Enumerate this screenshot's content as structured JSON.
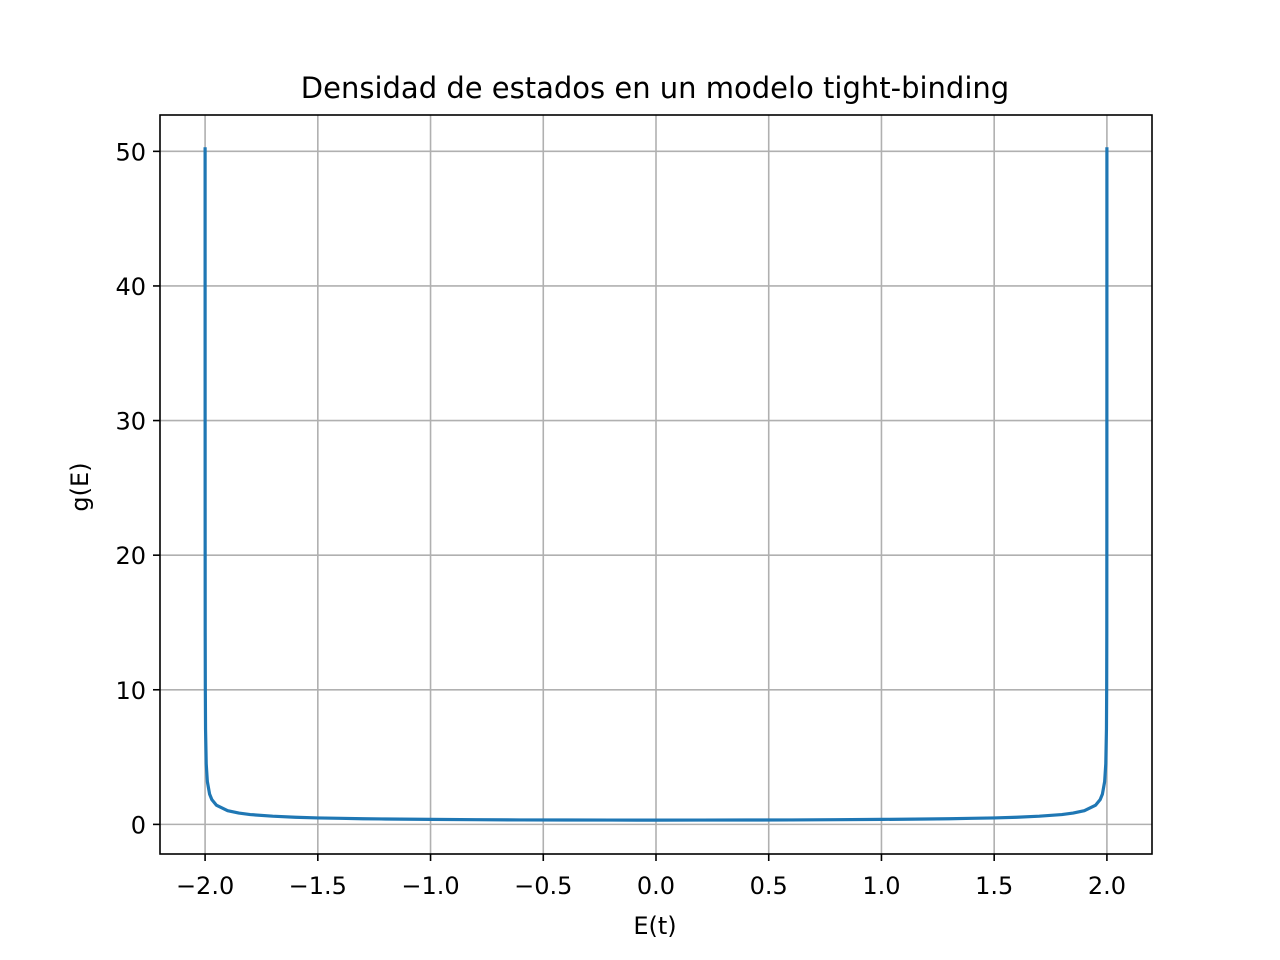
{
  "chart_data": {
    "type": "line",
    "title": "Densidad de estados en un modelo tight-binding",
    "xlabel": "E(t)",
    "ylabel": "g(E)",
    "xlim": [
      -2.2,
      2.2
    ],
    "ylim": [
      -2.2,
      52.7
    ],
    "grid": true,
    "legend": "none",
    "xticks": [
      -2.0,
      -1.5,
      -1.0,
      -0.5,
      0.0,
      0.5,
      1.0,
      1.5,
      2.0
    ],
    "xtick_labels": [
      "−2.0",
      "−1.5",
      "−1.0",
      "−0.5",
      "0.0",
      "0.5",
      "1.0",
      "1.5",
      "2.0"
    ],
    "yticks": [
      0,
      10,
      20,
      30,
      40,
      50
    ],
    "ytick_labels": [
      "0",
      "10",
      "20",
      "30",
      "40",
      "50"
    ],
    "series": [
      {
        "color": "#1f77b4",
        "x": [
          -1.99995,
          -1.9999,
          -1.9998,
          -1.9995,
          -1.999,
          -1.998,
          -1.995,
          -1.99,
          -1.98,
          -1.97,
          -1.95,
          -1.9,
          -1.85,
          -1.8,
          -1.7,
          -1.6,
          -1.5,
          -1.4,
          -1.3,
          -1.2,
          -1.0,
          -0.8,
          -0.6,
          -0.4,
          -0.2,
          0.0,
          0.2,
          0.4,
          0.6,
          0.8,
          1.0,
          1.2,
          1.3,
          1.4,
          1.5,
          1.6,
          1.7,
          1.8,
          1.85,
          1.9,
          1.95,
          1.97,
          1.98,
          1.99,
          1.995,
          1.998,
          1.999,
          1.9995,
          1.9998,
          1.9999,
          1.99995
        ],
        "y": [
          50.3,
          35.6,
          22.5,
          14.2,
          10.1,
          7.1,
          4.5,
          3.18,
          2.25,
          1.84,
          1.43,
          1.02,
          0.84,
          0.73,
          0.61,
          0.53,
          0.48,
          0.45,
          0.42,
          0.4,
          0.37,
          0.35,
          0.33,
          0.326,
          0.32,
          0.318,
          0.32,
          0.326,
          0.33,
          0.35,
          0.37,
          0.4,
          0.42,
          0.45,
          0.48,
          0.53,
          0.61,
          0.73,
          0.84,
          1.02,
          1.43,
          1.84,
          2.25,
          3.18,
          4.5,
          7.1,
          10.1,
          14.2,
          22.5,
          35.6,
          50.3
        ]
      }
    ]
  }
}
